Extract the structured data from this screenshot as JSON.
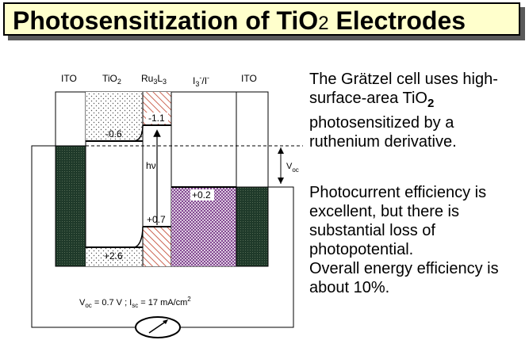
{
  "title": {
    "main": "Photosensitization of TiO",
    "sub": "2",
    "rest": " Electrodes"
  },
  "description": {
    "para1_a": "The Grätzel cell uses high-surface-area TiO",
    "para1_sub": "2",
    "para1_b": " photosensitized by a ruthenium derivative.",
    "para2": "Photocurrent efficiency is excellent, but there is substantial loss of photopotential.",
    "para3": "Overall energy efficiency is about 10%."
  },
  "diagram": {
    "headers": {
      "ito_left": "ITO",
      "tio2": "TiO",
      "tio2_sub": "2",
      "ru": "Ru",
      "ru_sub1": "3",
      "ru_mid": "L",
      "ru_sub2": "3",
      "electrolyte": "I",
      "electrolyte_sub": "3",
      "electrolyte_sup": "-",
      "electrolyte_rest": "/I",
      "electrolyte_sup2": "-",
      "ito_right": "ITO"
    },
    "levels": {
      "tio2_cb": "-0.6",
      "dye_excited": "-1.1",
      "dye_ground": "+0.7",
      "redox": "+0.2",
      "tio2_vb": "+2.6"
    },
    "photon": "hν",
    "voc_label": "V",
    "voc_sub": "oc",
    "caption": {
      "voc_v": "V",
      "voc_sub": "oc",
      "voc_val": " = 0.7 V ;  I",
      "isc_sub": "sc",
      "isc_val": " = 17 mA/cm",
      "isc_sup": "2"
    }
  }
}
